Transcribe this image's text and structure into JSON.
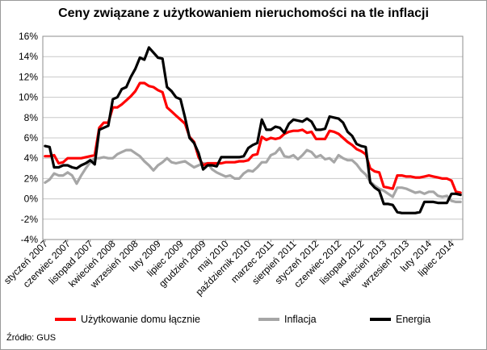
{
  "chart_data": {
    "type": "line",
    "title": "Ceny związane z użytkowaniem nieruchomości na tle inflacji",
    "xlabel": "",
    "ylabel": "",
    "ylim": [
      -4,
      16
    ],
    "yticks": [
      "-4%",
      "-2%",
      "0%",
      "2%",
      "4%",
      "6%",
      "8%",
      "10%",
      "12%",
      "14%",
      "16%"
    ],
    "ytick_values": [
      -4,
      -2,
      0,
      2,
      4,
      6,
      8,
      10,
      12,
      14,
      16
    ],
    "x_tick_labels": [
      "styczeń 2007",
      "czerwiec 2007",
      "listopad 2007",
      "kwiecień 2008",
      "wrzesień 2008",
      "luty 2009",
      "lipiec 2009",
      "grudzień 2009",
      "maj 2010",
      "październik 2010",
      "marzec 2011",
      "sierpień 2011",
      "styczeń 2012",
      "czerwiec 2012",
      "listopad 2012",
      "kwiecień 2013",
      "wrzesień 2013",
      "luty 2014",
      "lipiec 2014"
    ],
    "x_months": [
      "2007-01",
      "2007-02",
      "2007-03",
      "2007-04",
      "2007-05",
      "2007-06",
      "2007-07",
      "2007-08",
      "2007-09",
      "2007-10",
      "2007-11",
      "2007-12",
      "2008-01",
      "2008-02",
      "2008-03",
      "2008-04",
      "2008-05",
      "2008-06",
      "2008-07",
      "2008-08",
      "2008-09",
      "2008-10",
      "2008-11",
      "2008-12",
      "2009-01",
      "2009-02",
      "2009-03",
      "2009-04",
      "2009-05",
      "2009-06",
      "2009-07",
      "2009-08",
      "2009-09",
      "2009-10",
      "2009-11",
      "2009-12",
      "2010-01",
      "2010-02",
      "2010-03",
      "2010-04",
      "2010-05",
      "2010-06",
      "2010-07",
      "2010-08",
      "2010-09",
      "2010-10",
      "2010-11",
      "2010-12",
      "2011-01",
      "2011-02",
      "2011-03",
      "2011-04",
      "2011-05",
      "2011-06",
      "2011-07",
      "2011-08",
      "2011-09",
      "2011-10",
      "2011-11",
      "2011-12",
      "2012-01",
      "2012-02",
      "2012-03",
      "2012-04",
      "2012-05",
      "2012-06",
      "2012-07",
      "2012-08",
      "2012-09",
      "2012-10",
      "2012-11",
      "2012-12",
      "2013-01",
      "2013-02",
      "2013-03",
      "2013-04",
      "2013-05",
      "2013-06",
      "2013-07",
      "2013-08",
      "2013-09",
      "2013-10",
      "2013-11",
      "2013-12",
      "2014-01",
      "2014-02",
      "2014-03",
      "2014-04",
      "2014-05",
      "2014-06",
      "2014-07",
      "2014-08",
      "2014-09"
    ],
    "legend_position": "bottom",
    "grid": "horizontal",
    "series": [
      {
        "name": "Użytkowanie domu łącznie",
        "color": "#ff0000",
        "values": [
          4.2,
          4.2,
          4.3,
          3.5,
          3.6,
          4.0,
          4.0,
          4.0,
          4.0,
          4.1,
          4.2,
          4.3,
          7.0,
          7.5,
          7.5,
          9.0,
          9.0,
          9.3,
          9.7,
          10.1,
          10.6,
          11.4,
          11.4,
          11.1,
          11.0,
          10.7,
          10.5,
          9.0,
          8.6,
          8.2,
          7.8,
          7.4,
          6.1,
          5.6,
          4.1,
          3.3,
          3.5,
          3.5,
          3.5,
          3.5,
          3.6,
          3.6,
          3.6,
          3.7,
          3.7,
          3.8,
          4.3,
          4.4,
          6.1,
          5.8,
          6.0,
          5.9,
          6.0,
          6.4,
          6.6,
          6.7,
          6.7,
          6.8,
          6.5,
          6.6,
          5.9,
          5.9,
          5.9,
          6.7,
          6.6,
          6.4,
          6.0,
          5.6,
          5.3,
          4.9,
          4.7,
          4.4,
          3.0,
          2.7,
          2.6,
          1.2,
          1.1,
          1.0,
          2.3,
          2.3,
          2.2,
          2.2,
          2.1,
          2.1,
          2.2,
          2.3,
          2.2,
          2.1,
          2.0,
          2.0,
          1.8,
          0.7,
          0.6
        ]
      },
      {
        "name": "Inflacja",
        "color": "#a6a6a6",
        "values": [
          1.6,
          1.9,
          2.5,
          2.3,
          2.3,
          2.6,
          2.3,
          1.5,
          2.3,
          3.0,
          3.6,
          4.0,
          4.0,
          4.1,
          4.0,
          4.0,
          4.4,
          4.6,
          4.8,
          4.8,
          4.5,
          4.2,
          3.7,
          3.3,
          2.8,
          3.3,
          3.6,
          4.0,
          3.6,
          3.5,
          3.6,
          3.7,
          3.4,
          3.1,
          3.3,
          3.5,
          3.5,
          2.9,
          2.6,
          2.4,
          2.2,
          2.3,
          2.0,
          2.0,
          2.5,
          2.8,
          2.7,
          3.1,
          3.6,
          3.6,
          4.3,
          4.5,
          5.0,
          4.2,
          4.1,
          4.3,
          3.9,
          4.3,
          4.8,
          4.6,
          4.1,
          4.3,
          3.9,
          4.0,
          3.6,
          4.3,
          4.0,
          3.8,
          3.8,
          3.4,
          2.8,
          2.4,
          1.7,
          1.3,
          1.0,
          0.8,
          0.5,
          0.2,
          1.1,
          1.1,
          1.0,
          0.8,
          0.6,
          0.7,
          0.5,
          0.7,
          0.7,
          0.3,
          0.2,
          0.3,
          -0.2,
          -0.3,
          -0.3
        ]
      },
      {
        "name": "Energia",
        "color": "#000000",
        "values": [
          5.2,
          5.1,
          3.1,
          3.1,
          3.3,
          3.3,
          3.1,
          3.0,
          3.3,
          3.5,
          3.8,
          3.4,
          6.8,
          7.0,
          7.2,
          9.8,
          10.0,
          10.8,
          11.0,
          12.0,
          12.8,
          13.9,
          13.7,
          14.9,
          14.4,
          13.9,
          13.8,
          11.0,
          10.6,
          10.0,
          9.8,
          8.0,
          6.0,
          5.5,
          4.5,
          2.9,
          3.3,
          3.3,
          3.2,
          4.1,
          4.1,
          4.1,
          4.1,
          4.1,
          4.2,
          5.0,
          5.3,
          5.5,
          7.8,
          6.8,
          6.8,
          7.1,
          7.0,
          6.5,
          7.4,
          7.8,
          7.7,
          7.6,
          7.9,
          7.6,
          6.8,
          6.8,
          6.9,
          8.1,
          8.0,
          7.9,
          7.5,
          6.6,
          6.2,
          5.4,
          5.2,
          5.1,
          1.6,
          1.1,
          0.8,
          -0.5,
          -0.5,
          -0.6,
          -1.3,
          -1.4,
          -1.4,
          -1.4,
          -1.4,
          -1.3,
          -0.3,
          -0.3,
          -0.3,
          -0.4,
          -0.4,
          -0.4,
          0.5,
          0.5,
          0.4
        ]
      }
    ]
  },
  "source_text": "Źródło: GUS"
}
